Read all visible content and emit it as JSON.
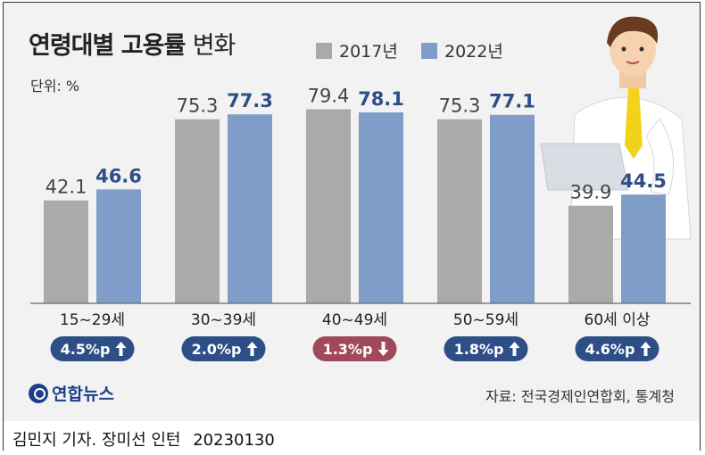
{
  "title": {
    "bold": "연령대별 고용률",
    "light": "변화"
  },
  "unit": "단위: %",
  "source": "자료: 전국경제인연합회, 통계청",
  "logo": "연합뉴스",
  "byline": {
    "reporter": "김민지 기자. 장미선 인턴",
    "date": "20230130"
  },
  "colors": {
    "s2017": "#aaaaaa",
    "s2022": "#7f9dc8",
    "up_badge": "#2d4f86",
    "down_badge": "#a0495a",
    "label2022": "#2d4f86",
    "label2017": "#444444"
  },
  "chart_data": {
    "type": "bar",
    "categories": [
      "15~29세",
      "30~39세",
      "40~49세",
      "50~59세",
      "60세 이상"
    ],
    "series": [
      {
        "name": "2017년",
        "values": [
          42.1,
          75.3,
          79.4,
          75.3,
          39.9
        ]
      },
      {
        "name": "2022년",
        "values": [
          46.6,
          77.3,
          78.1,
          77.1,
          44.5
        ]
      }
    ],
    "changes": [
      "4.5%p",
      "2.0%p",
      "1.3%p",
      "1.8%p",
      "4.6%p"
    ],
    "change_direction": [
      "up",
      "up",
      "down",
      "up",
      "up"
    ],
    "ylim": [
      0,
      100
    ],
    "grid": false,
    "legend": "top"
  }
}
